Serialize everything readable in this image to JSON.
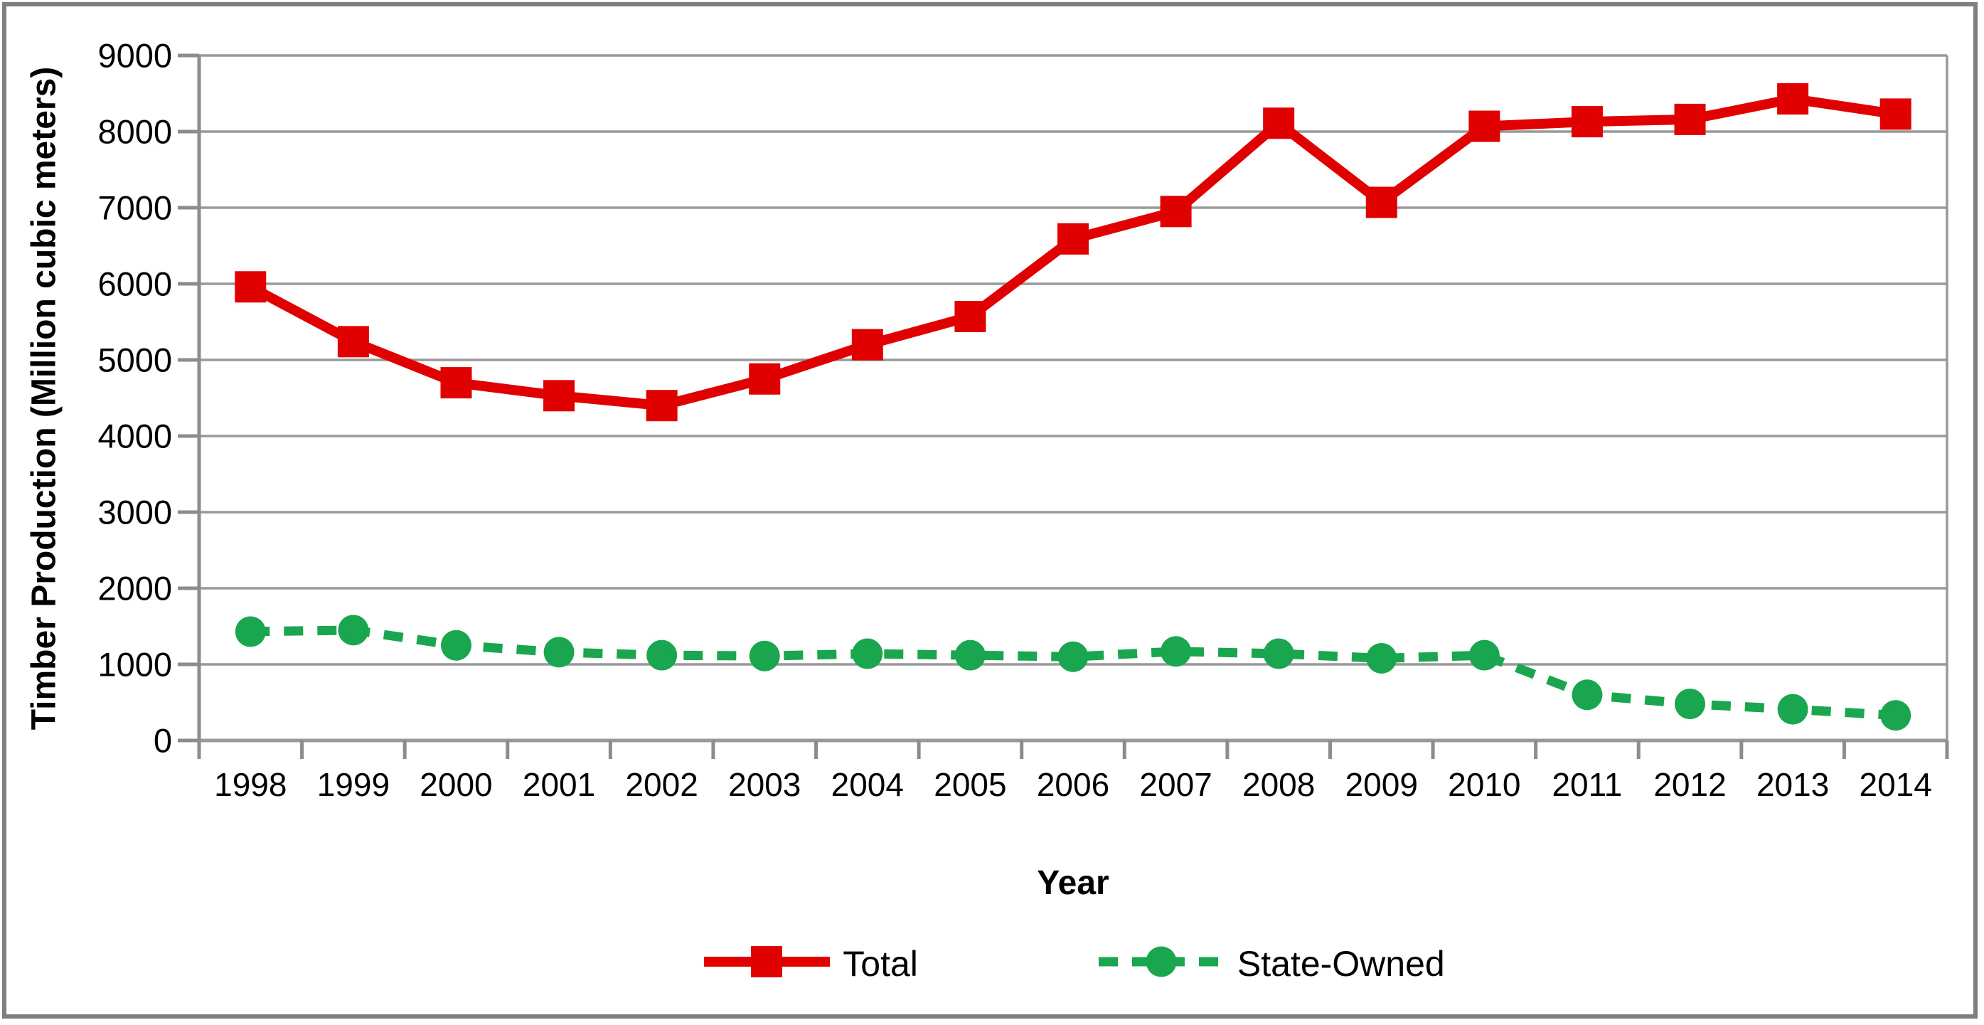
{
  "figure": {
    "background_color": "#ffffff",
    "border_color": "#7f7f7f",
    "grid_color": "#999999",
    "axis_line_color": "#8c8c8c",
    "text_color": "#000000"
  },
  "chart_data": {
    "type": "line",
    "title": "",
    "xlabel": "Year",
    "ylabel": "Timber Production (Million cubic meters)",
    "categories": [
      "1998",
      "1999",
      "2000",
      "2001",
      "2002",
      "2003",
      "2004",
      "2005",
      "2006",
      "2007",
      "2008",
      "2009",
      "2010",
      "2011",
      "2012",
      "2013",
      "2014"
    ],
    "ylim": [
      0,
      9000
    ],
    "ytick_step": 1000,
    "ytick_labels": [
      "0",
      "1000",
      "2000",
      "3000",
      "4000",
      "5000",
      "6000",
      "7000",
      "8000",
      "9000"
    ],
    "grid": "horizontal",
    "legend_position": "bottom-center",
    "series": [
      {
        "name": "Total",
        "color": "#e00000",
        "line_style": "solid",
        "marker": "square",
        "values": [
          5960,
          5240,
          4700,
          4530,
          4400,
          4750,
          5200,
          5570,
          6590,
          6950,
          8110,
          7070,
          8070,
          8130,
          8160,
          8430,
          8230
        ]
      },
      {
        "name": "State-Owned",
        "color": "#1aa64e",
        "line_style": "dashed",
        "marker": "circle",
        "values": [
          1430,
          1450,
          1250,
          1160,
          1120,
          1110,
          1140,
          1120,
          1100,
          1170,
          1140,
          1080,
          1120,
          600,
          480,
          410,
          330
        ]
      }
    ]
  }
}
